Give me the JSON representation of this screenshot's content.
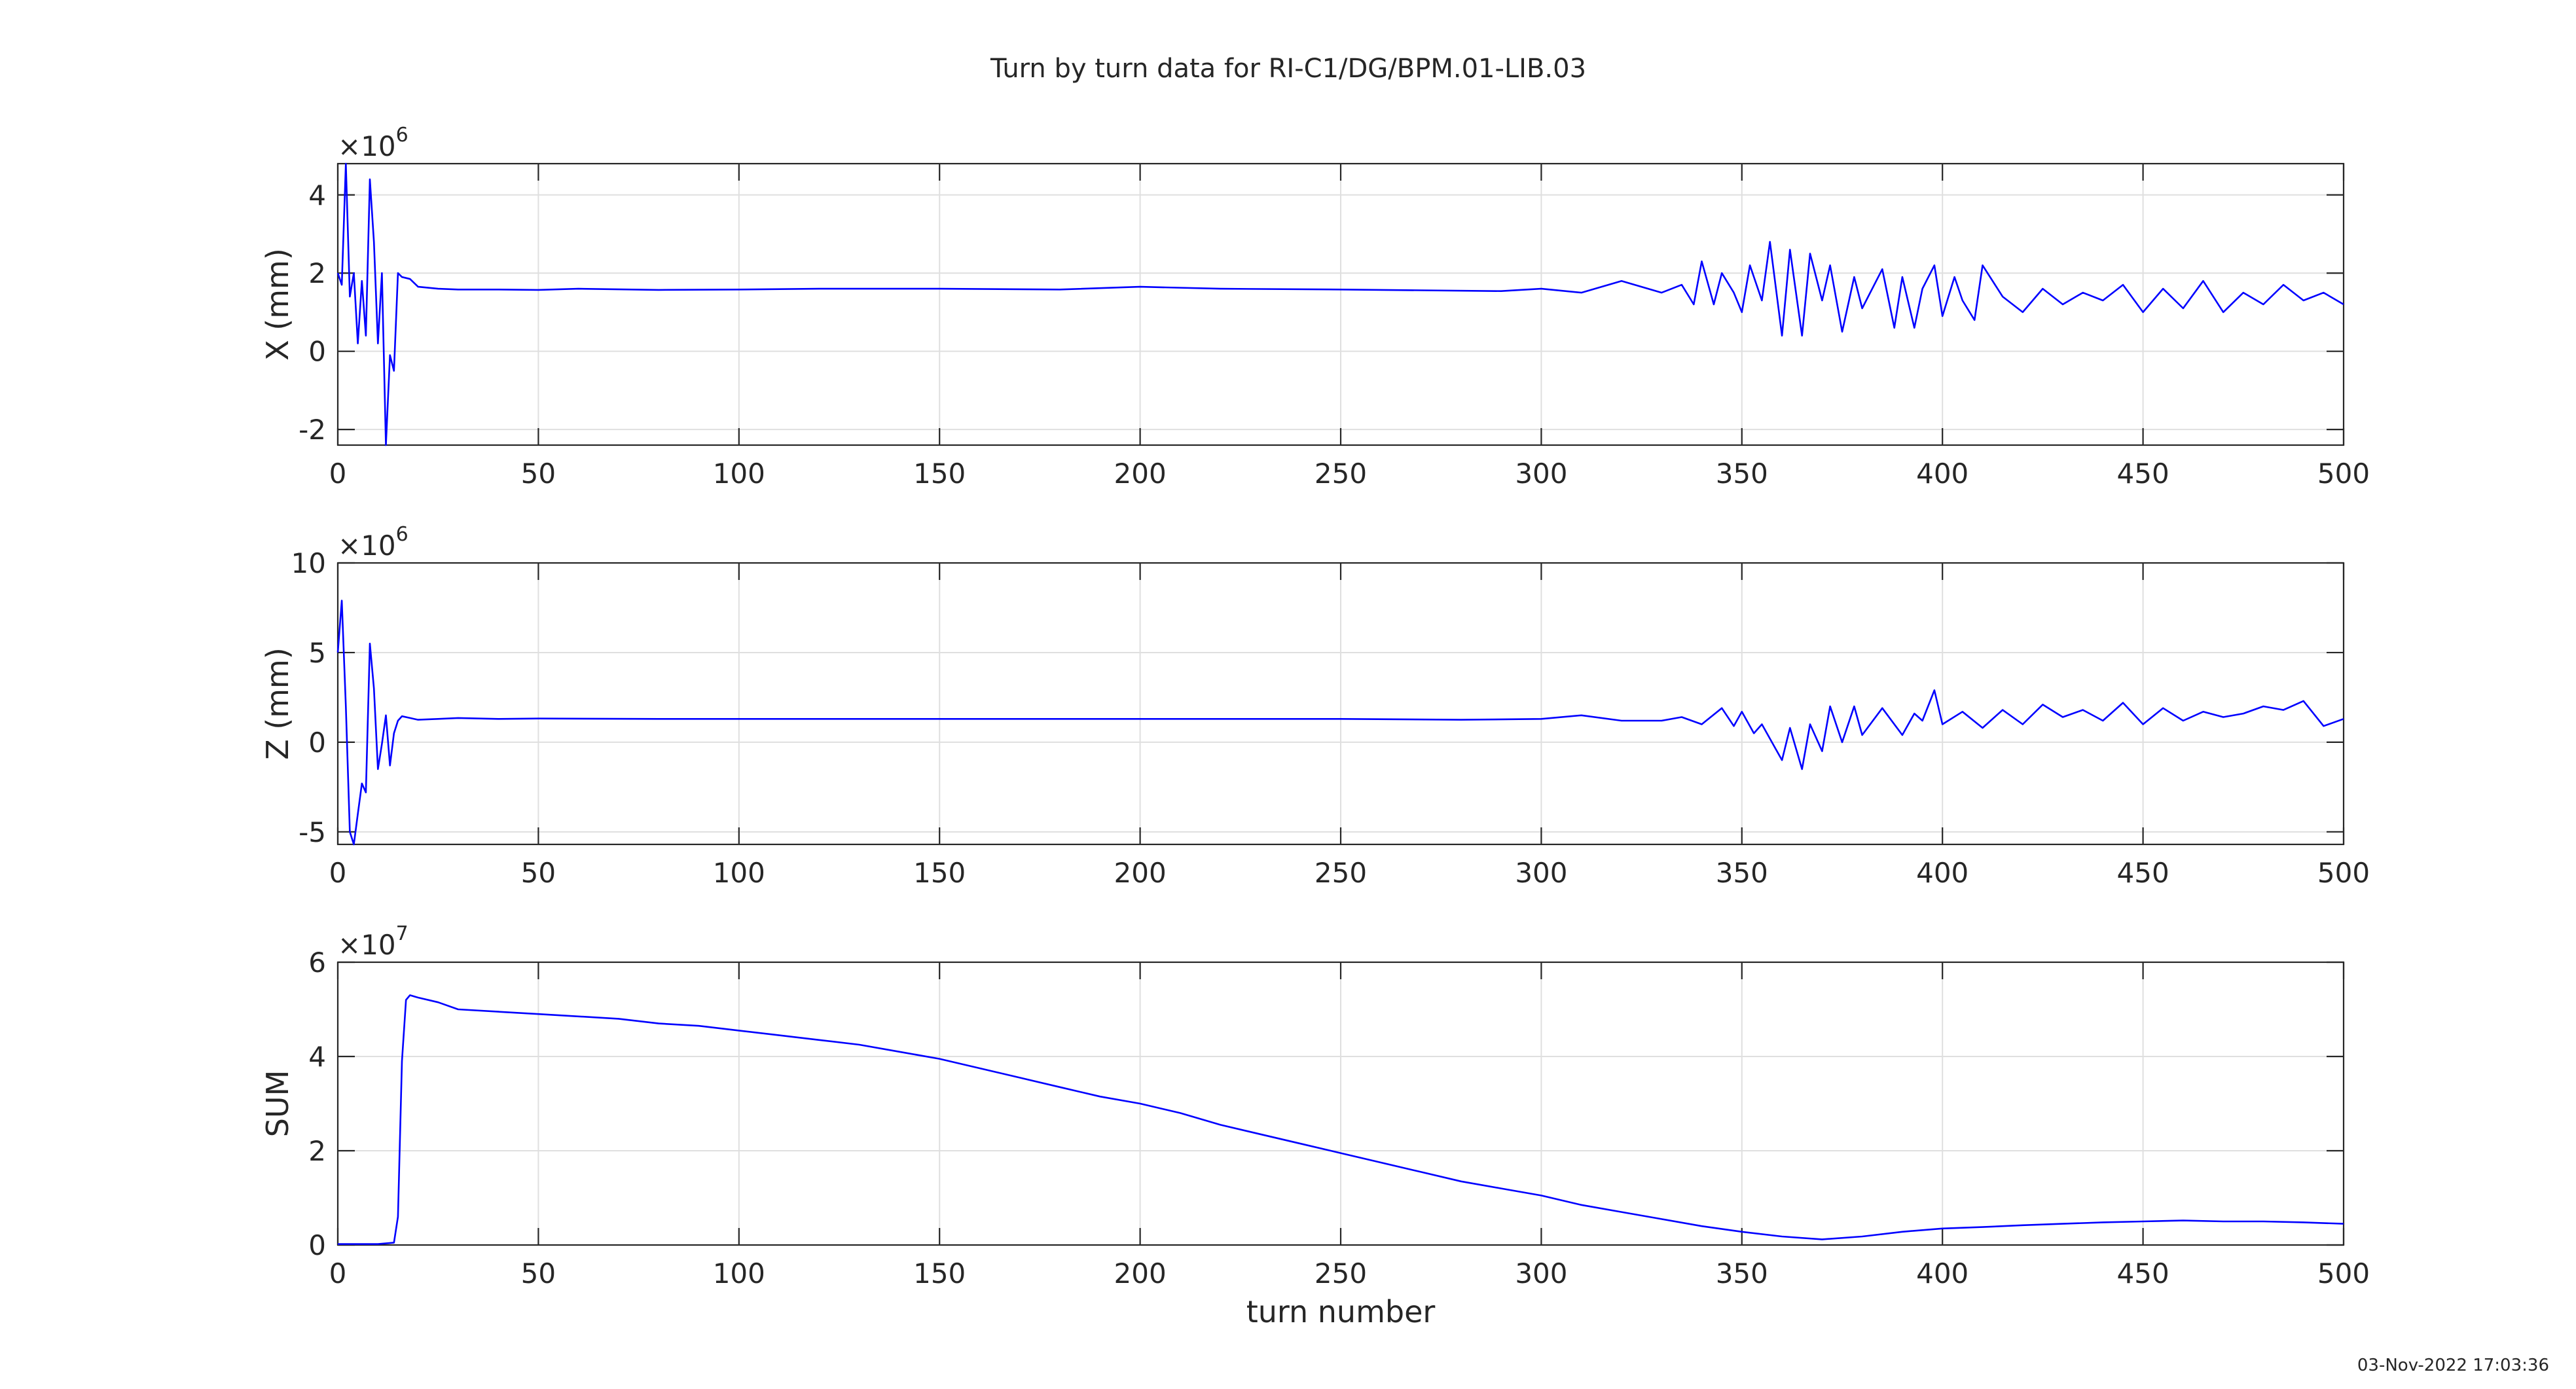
{
  "title": "Turn by turn data for RI-C1/DG/BPM.01-LIB.03",
  "timestamp": "03-Nov-2022 17:03:36",
  "chart_data": [
    {
      "type": "line",
      "ylabel": "X (mm)",
      "xlabel": "",
      "xlim": [
        0,
        500
      ],
      "ylim": [
        -2.4,
        4.8
      ],
      "y_exponent": "6",
      "y_exponent_prefix": "×10",
      "xticks": [
        0,
        50,
        100,
        150,
        200,
        250,
        300,
        350,
        400,
        450,
        500
      ],
      "yticks": [
        -2,
        0,
        2,
        4
      ],
      "grid": true,
      "series": [
        {
          "color": "#0000ff",
          "x": [
            0,
            1,
            2,
            3,
            4,
            5,
            6,
            7,
            8,
            9,
            10,
            11,
            12,
            13,
            14,
            15,
            16,
            18,
            20,
            25,
            30,
            40,
            50,
            60,
            80,
            100,
            120,
            150,
            180,
            200,
            220,
            250,
            270,
            290,
            300,
            310,
            320,
            330,
            335,
            338,
            340,
            343,
            345,
            348,
            350,
            352,
            355,
            357,
            360,
            362,
            365,
            367,
            370,
            372,
            375,
            378,
            380,
            385,
            388,
            390,
            393,
            395,
            398,
            400,
            403,
            405,
            408,
            410,
            415,
            420,
            425,
            430,
            435,
            440,
            445,
            450,
            455,
            460,
            465,
            470,
            475,
            480,
            485,
            490,
            495,
            500
          ],
          "values": [
            2.0,
            1.7,
            4.8,
            1.4,
            2.0,
            0.2,
            1.8,
            0.4,
            4.4,
            2.8,
            0.2,
            2.0,
            -2.4,
            -0.1,
            -0.5,
            2.0,
            1.9,
            1.85,
            1.65,
            1.6,
            1.58,
            1.58,
            1.57,
            1.6,
            1.57,
            1.58,
            1.6,
            1.6,
            1.58,
            1.65,
            1.6,
            1.58,
            1.56,
            1.54,
            1.6,
            1.5,
            1.8,
            1.5,
            1.7,
            1.2,
            2.3,
            1.2,
            2.0,
            1.5,
            1.0,
            2.2,
            1.3,
            2.8,
            0.4,
            2.6,
            0.4,
            2.5,
            1.3,
            2.2,
            0.5,
            1.9,
            1.1,
            2.1,
            0.6,
            1.9,
            0.6,
            1.6,
            2.2,
            0.9,
            1.9,
            1.3,
            0.8,
            2.2,
            1.4,
            1.0,
            1.6,
            1.2,
            1.5,
            1.3,
            1.7,
            1.0,
            1.6,
            1.1,
            1.8,
            1.0,
            1.5,
            1.2,
            1.7,
            1.3,
            1.5,
            1.2
          ]
        }
      ]
    },
    {
      "type": "line",
      "ylabel": "Z (mm)",
      "xlabel": "",
      "xlim": [
        0,
        500
      ],
      "ylim": [
        -5.7,
        10
      ],
      "y_exponent": "6",
      "y_exponent_prefix": "×10",
      "xticks": [
        0,
        50,
        100,
        150,
        200,
        250,
        300,
        350,
        400,
        450,
        500
      ],
      "yticks": [
        -5,
        0,
        5,
        10
      ],
      "grid": true,
      "series": [
        {
          "color": "#0000ff",
          "x": [
            0,
            1,
            2,
            3,
            4,
            5,
            6,
            7,
            8,
            9,
            10,
            11,
            12,
            13,
            14,
            15,
            16,
            18,
            20,
            25,
            30,
            40,
            50,
            80,
            100,
            150,
            200,
            250,
            280,
            300,
            310,
            320,
            330,
            335,
            340,
            345,
            348,
            350,
            353,
            355,
            358,
            360,
            362,
            365,
            367,
            370,
            372,
            375,
            378,
            380,
            385,
            390,
            393,
            395,
            398,
            400,
            405,
            410,
            415,
            420,
            425,
            430,
            435,
            440,
            445,
            450,
            455,
            460,
            465,
            470,
            475,
            480,
            485,
            490,
            495,
            500
          ],
          "values": [
            5.0,
            7.9,
            2.0,
            -5.0,
            -5.7,
            -4.0,
            -2.3,
            -2.8,
            5.5,
            3.0,
            -1.5,
            -0.1,
            1.5,
            -1.3,
            0.5,
            1.2,
            1.45,
            1.35,
            1.25,
            1.3,
            1.35,
            1.3,
            1.32,
            1.3,
            1.3,
            1.3,
            1.3,
            1.3,
            1.25,
            1.3,
            1.5,
            1.2,
            1.2,
            1.4,
            1.0,
            1.9,
            0.9,
            1.7,
            0.5,
            1.0,
            -0.2,
            -1.0,
            0.8,
            -1.5,
            1.0,
            -0.5,
            2.0,
            0.0,
            2.0,
            0.4,
            1.9,
            0.4,
            1.6,
            1.2,
            2.9,
            1.0,
            1.7,
            0.8,
            1.8,
            1.0,
            2.1,
            1.4,
            1.8,
            1.2,
            2.2,
            1.0,
            1.9,
            1.2,
            1.7,
            1.4,
            1.6,
            2.0,
            1.8,
            2.3,
            0.9,
            1.3
          ]
        }
      ]
    },
    {
      "type": "line",
      "ylabel": "SUM",
      "xlabel": "turn number",
      "xlim": [
        0,
        500
      ],
      "ylim": [
        0,
        6
      ],
      "y_exponent": "7",
      "y_exponent_prefix": "×10",
      "xticks": [
        0,
        50,
        100,
        150,
        200,
        250,
        300,
        350,
        400,
        450,
        500
      ],
      "yticks": [
        0,
        2,
        4,
        6
      ],
      "grid": true,
      "series": [
        {
          "color": "#0000ff",
          "x": [
            0,
            5,
            10,
            14,
            15,
            16,
            17,
            18,
            20,
            25,
            30,
            40,
            50,
            60,
            70,
            80,
            90,
            100,
            110,
            120,
            130,
            140,
            150,
            160,
            170,
            180,
            190,
            200,
            210,
            220,
            230,
            240,
            250,
            260,
            270,
            280,
            290,
            300,
            310,
            320,
            330,
            340,
            350,
            360,
            370,
            380,
            390,
            400,
            410,
            420,
            430,
            440,
            450,
            460,
            470,
            480,
            490,
            500
          ],
          "values": [
            0.02,
            0.02,
            0.02,
            0.05,
            0.6,
            3.9,
            5.2,
            5.3,
            5.25,
            5.15,
            5.0,
            4.95,
            4.9,
            4.85,
            4.8,
            4.7,
            4.65,
            4.55,
            4.45,
            4.35,
            4.25,
            4.1,
            3.95,
            3.75,
            3.55,
            3.35,
            3.15,
            3.0,
            2.8,
            2.55,
            2.35,
            2.15,
            1.95,
            1.75,
            1.55,
            1.35,
            1.2,
            1.05,
            0.85,
            0.7,
            0.55,
            0.4,
            0.28,
            0.18,
            0.12,
            0.18,
            0.28,
            0.35,
            0.38,
            0.42,
            0.45,
            0.48,
            0.5,
            0.52,
            0.5,
            0.5,
            0.48,
            0.45
          ]
        }
      ]
    }
  ]
}
